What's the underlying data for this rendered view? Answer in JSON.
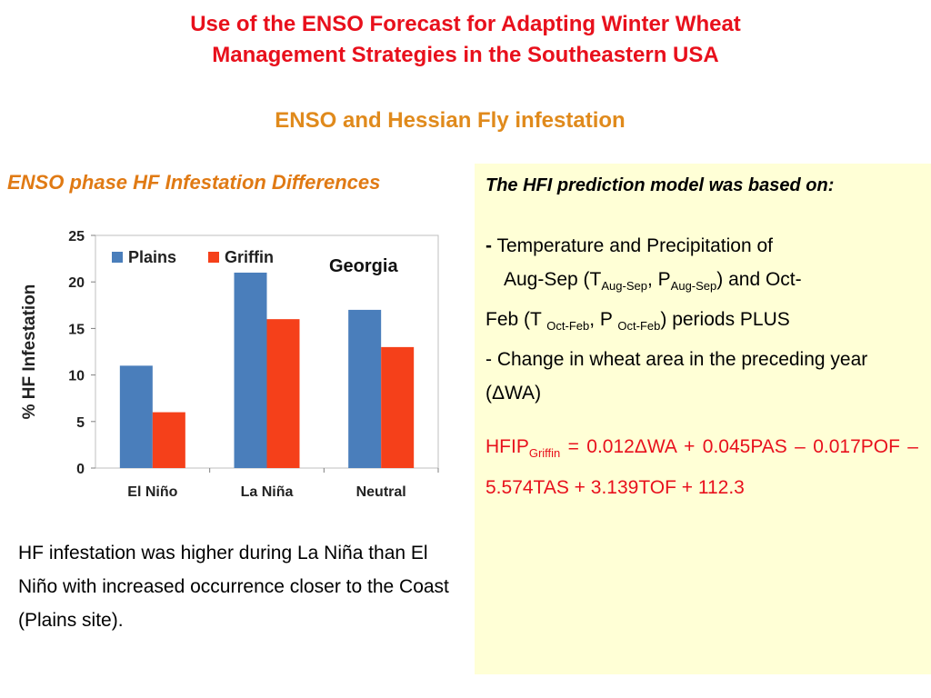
{
  "title_line1": "Use of the ENSO Forecast for Adapting Winter Wheat",
  "title_line2": "Management Strategies in the Southeastern USA",
  "subtitle": "ENSO and Hessian Fly infestation",
  "chart_heading": "ENSO phase HF Infestation Differences",
  "chart_data": {
    "type": "bar",
    "categories": [
      "El Niño",
      "La Niña",
      "Neutral"
    ],
    "series": [
      {
        "name": "Plains",
        "values": [
          11,
          21,
          17
        ],
        "color": "#4a7ebb"
      },
      {
        "name": "Griffin",
        "values": [
          6,
          16,
          13
        ],
        "color": "#f5401a"
      }
    ],
    "ylabel": "% HF Infestation",
    "annotation": "Georgia",
    "ylim": [
      0,
      25
    ],
    "yticks": [
      0,
      5,
      10,
      15,
      20,
      25
    ],
    "grid": false,
    "legend": "top-left"
  },
  "note": "HF infestation was higher during La Niña than El Niño with increased occurrence closer to the Coast (Plains site).",
  "panel": {
    "heading": "The HFI prediction model was based on:",
    "bullet_dash": "-",
    "line1": "Temperature and Precipitation of",
    "line2a": "Aug-Sep (T",
    "sub_aug1": "Aug-Sep",
    "line2b": ", P",
    "sub_aug2": "Aug-Sep",
    "line2c": ") and  Oct-",
    "line3a": "Feb (T ",
    "sub_oct1": "Oct-Feb",
    "line3b": ", P ",
    "sub_oct2": "Oct-Feb",
    "line3c": ") periods PLUS",
    "line4": "- Change in wheat area in the preceding year (ΔWA)",
    "formula_a": "HFIP",
    "formula_sub": "Griffin",
    "formula_b": " = 0.012ΔWA + 0.045PAS – 0.017POF – 5.574TAS + 3.139TOF + 112.3"
  }
}
